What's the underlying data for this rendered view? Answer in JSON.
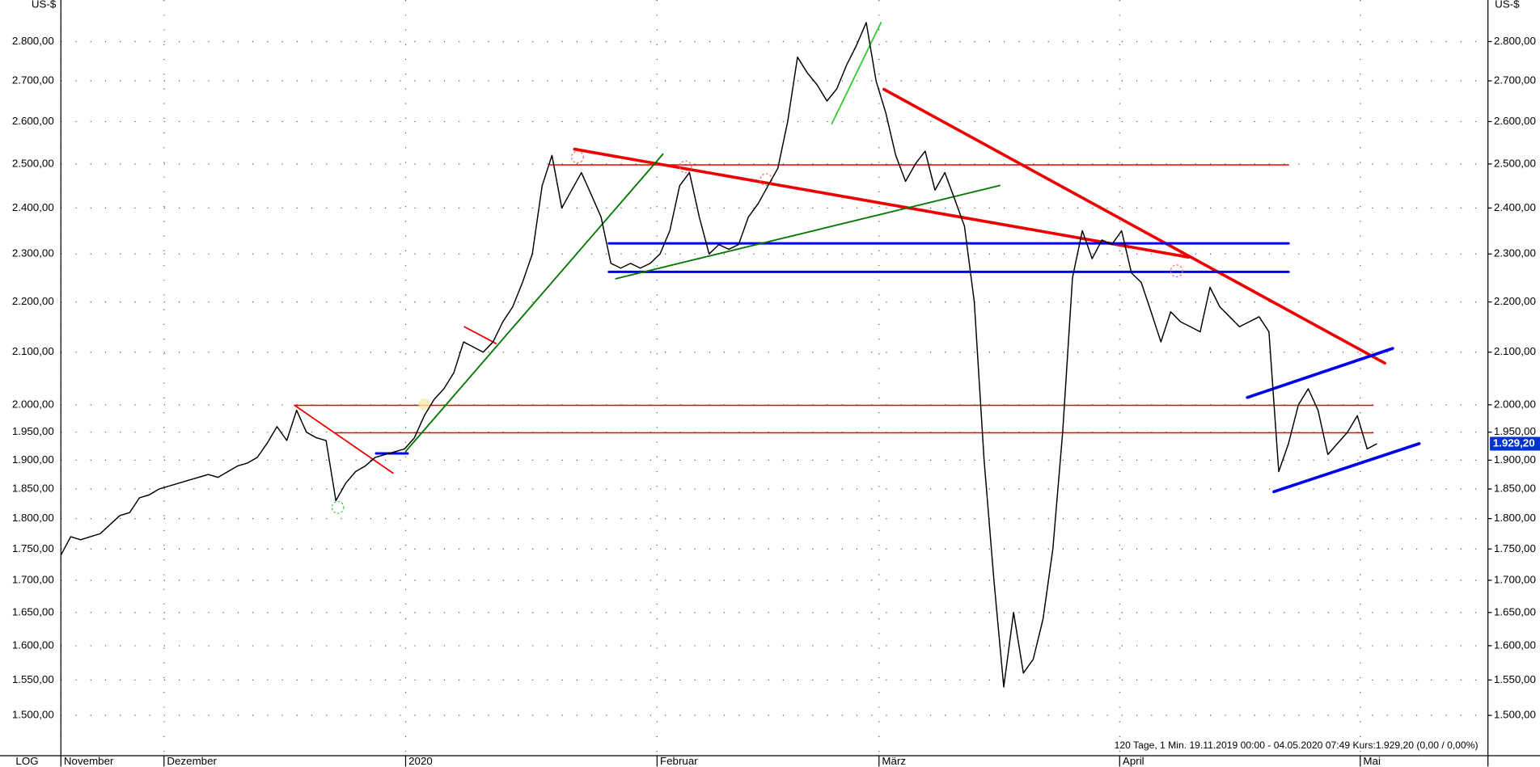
{
  "chart_data": {
    "type": "line",
    "unit_left": "US-$",
    "unit_right": "US-$",
    "scale_label": "LOG",
    "log_scale": true,
    "grid": true,
    "color": "#000000",
    "info": "120 Tage, 1 Min. 19.11.2019 00:00 - 04.05.2020 07:49 Kurs:1.929,20 (0,00 / 0,00%)",
    "current_price_label": "1.929,20",
    "xlim": [
      0,
      145.3
    ],
    "xticks": [
      {
        "value": 0,
        "label": "November"
      },
      {
        "value": 10.5,
        "label": "Dezember"
      },
      {
        "value": 35.1,
        "label": "2020"
      },
      {
        "value": 60.7,
        "label": "Februar"
      },
      {
        "value": 83.3,
        "label": "März"
      },
      {
        "value": 107.8,
        "label": "April"
      },
      {
        "value": 132.3,
        "label": "Mai"
      }
    ],
    "ylim": [
      1445,
      2910
    ],
    "yticks": [
      {
        "value": 1500,
        "label": "1.500,00"
      },
      {
        "value": 1550,
        "label": "1.550,00"
      },
      {
        "value": 1600,
        "label": "1.600,00"
      },
      {
        "value": 1650,
        "label": "1.650,00"
      },
      {
        "value": 1700,
        "label": "1.700,00"
      },
      {
        "value": 1750,
        "label": "1.750,00"
      },
      {
        "value": 1800,
        "label": "1.800,00"
      },
      {
        "value": 1850,
        "label": "1.850,00"
      },
      {
        "value": 1900,
        "label": "1.900,00"
      },
      {
        "value": 1950,
        "label": "1.950,00"
      },
      {
        "value": 2000,
        "label": "2.000,00"
      },
      {
        "value": 2100,
        "label": "2.100,00"
      },
      {
        "value": 2200,
        "label": "2.200,00"
      },
      {
        "value": 2300,
        "label": "2.300,00"
      },
      {
        "value": 2400,
        "label": "2.400,00"
      },
      {
        "value": 2500,
        "label": "2.500,00"
      },
      {
        "value": 2600,
        "label": "2.600,00"
      },
      {
        "value": 2700,
        "label": "2.700,00"
      },
      {
        "value": 2800,
        "label": "2.800,00"
      }
    ],
    "values": [
      1740,
      1770,
      1765,
      1770,
      1775,
      1790,
      1805,
      1810,
      1835,
      1840,
      1850,
      1855,
      1860,
      1865,
      1870,
      1875,
      1870,
      1880,
      1890,
      1895,
      1905,
      1930,
      1960,
      1935,
      1990,
      1950,
      1940,
      1935,
      1830,
      1860,
      1880,
      1890,
      1905,
      1910,
      1915,
      1920,
      1940,
      1980,
      2010,
      2030,
      2060,
      2120,
      2110,
      2100,
      2120,
      2160,
      2190,
      2240,
      2300,
      2450,
      2520,
      2400,
      2440,
      2480,
      2430,
      2380,
      2280,
      2270,
      2280,
      2270,
      2280,
      2300,
      2350,
      2450,
      2480,
      2380,
      2300,
      2320,
      2310,
      2320,
      2380,
      2410,
      2450,
      2490,
      2600,
      2760,
      2720,
      2690,
      2650,
      2680,
      2740,
      2790,
      2850,
      2700,
      2620,
      2520,
      2460,
      2500,
      2530,
      2440,
      2480,
      2420,
      2360,
      2200,
      1900,
      1700,
      1540,
      1650,
      1560,
      1580,
      1640,
      1750,
      1950,
      2250,
      2350,
      2290,
      2330,
      2320,
      2350,
      2260,
      2240,
      2180,
      2120,
      2180,
      2160,
      2150,
      2140,
      2230,
      2190,
      2170,
      2150,
      2160,
      2170,
      2140,
      1880,
      1930,
      2000,
      2030,
      1990,
      1910,
      1930,
      1950,
      1980,
      1920,
      1929.2
    ]
  }
}
